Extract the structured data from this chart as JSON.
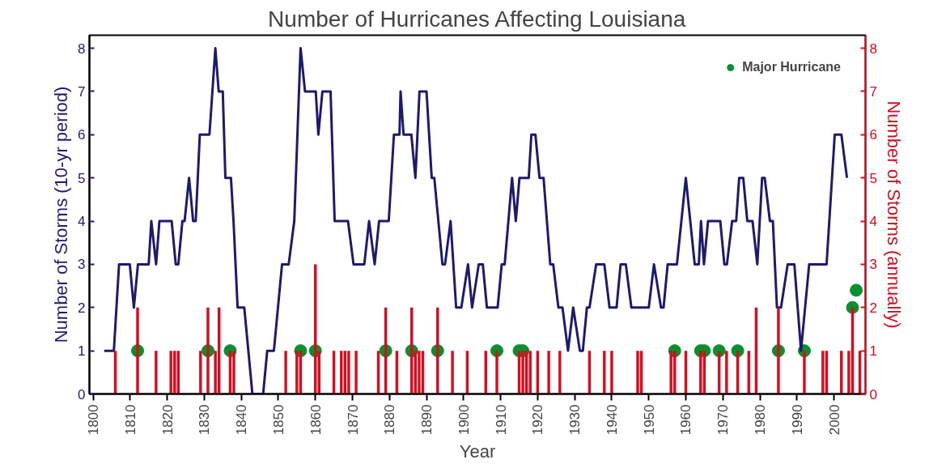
{
  "chart_data": {
    "type": "line",
    "title": "Number of Hurricanes Affecting Louisiana",
    "xlabel": "Year",
    "ylabel": "Number of Storms (10-yr period)",
    "y2label": "Number of Storms (annually)",
    "xlim": [
      1799,
      2008.5
    ],
    "xticks": [
      1800,
      1810,
      1820,
      1830,
      1840,
      1850,
      1860,
      1870,
      1880,
      1890,
      1900,
      1910,
      1920,
      1930,
      1940,
      1950,
      1960,
      1970,
      1980,
      1990,
      2000
    ],
    "ylim": [
      0,
      8.3
    ],
    "yticks": [
      0,
      1,
      2,
      3,
      4,
      5,
      6,
      7,
      8
    ],
    "y2lim": [
      0,
      8.3
    ],
    "y2ticks": [
      0,
      1,
      2,
      3,
      4,
      5,
      6,
      7,
      8
    ],
    "legend": "top right",
    "series": [
      {
        "axis": "y",
        "color": "#1f1a6e",
        "marker": "none",
        "line_style": "solid",
        "x": [
          1803,
          1805.6,
          1807,
          1809.9,
          1811,
          1812.1,
          1815,
          1815.7,
          1817,
          1817.9,
          1821.2,
          1822.3,
          1823,
          1824.1,
          1824.7,
          1825.9,
          1827,
          1827.7,
          1828.8,
          1831.4,
          1833,
          1833.9,
          1835,
          1835.7,
          1837.2,
          1837.9,
          1839,
          1840.8,
          1843,
          1845.9,
          1847,
          1848.8,
          1851,
          1852.8,
          1854.3,
          1856,
          1857.2,
          1860.1,
          1860.8,
          1861.9,
          1864.1,
          1865.2,
          1868.8,
          1870.3,
          1873.2,
          1874.5,
          1876,
          1877.2,
          1879.8,
          1881.2,
          1882.7,
          1883,
          1883.8,
          1885.9,
          1887,
          1888.1,
          1890,
          1891.4,
          1892.1,
          1894.3,
          1895,
          1896.5,
          1898,
          1899.4,
          1901.2,
          1902.3,
          1904.1,
          1905.2,
          1906.3,
          1909.2,
          1910.3,
          1911.1,
          1913.1,
          1914.1,
          1915.1,
          1917.6,
          1918.3,
          1919.4,
          1920.5,
          1921.6,
          1923.4,
          1924.2,
          1925.6,
          1926.7,
          1928.2,
          1929.6,
          1931.4,
          1932.2,
          1933.3,
          1934,
          1935.8,
          1938,
          1939.4,
          1941.3,
          1942.4,
          1943.8,
          1945.3,
          1950,
          1951.4,
          1953.3,
          1954,
          1955.1,
          1957.6,
          1960,
          1962.4,
          1963.5,
          1964.1,
          1964.9,
          1966,
          1969.3,
          1970.4,
          1971.1,
          1972.5,
          1973.6,
          1974.4,
          1975.5,
          1976.6,
          1978,
          1979.3,
          1980.6,
          1981.3,
          1982.7,
          1983.5,
          1984.6,
          1985.7,
          1987.5,
          1989.3,
          1991.1,
          1993.3,
          1998,
          2000.2,
          2002,
          2003.5
        ],
        "values": [
          1,
          1,
          3,
          3,
          2,
          3,
          3,
          4,
          3,
          4,
          4,
          3,
          3,
          4,
          4,
          5,
          4,
          4,
          6,
          6,
          8,
          7,
          7,
          5,
          5,
          4,
          2,
          2,
          0,
          0,
          1,
          1,
          3,
          3,
          4,
          8,
          7,
          7,
          6,
          7,
          7,
          4,
          4,
          3,
          3,
          4,
          3,
          4,
          4,
          6,
          6,
          7,
          6,
          6,
          5,
          7,
          7,
          5,
          5,
          3,
          3,
          4,
          2,
          2,
          3,
          2,
          3,
          3,
          2,
          2,
          3,
          3,
          5,
          4,
          5,
          5,
          6,
          6,
          5,
          5,
          3,
          3,
          2,
          2,
          1,
          2,
          1,
          1,
          2,
          2,
          3,
          3,
          2,
          2,
          3,
          3,
          2,
          2,
          3,
          2,
          2,
          3,
          3,
          5,
          3,
          3,
          4,
          3,
          4,
          4,
          3,
          3,
          4,
          4,
          5,
          5,
          4,
          4,
          3,
          5,
          5,
          4,
          4,
          2,
          2,
          3,
          3,
          1,
          3,
          3,
          6,
          6,
          5
        ]
      },
      {
        "type": "bar",
        "axis": "y2",
        "color": "#dc0a1e",
        "x": [
          1806,
          1812,
          1817,
          1821,
          1822,
          1823,
          1829,
          1831,
          1833,
          1834,
          1837,
          1838,
          1852,
          1855,
          1856,
          1860,
          1861,
          1865,
          1867,
          1868,
          1869,
          1871,
          1877,
          1879,
          1882,
          1886,
          1887,
          1888,
          1889,
          1893,
          1897,
          1901,
          1906,
          1909,
          1915,
          1916,
          1917,
          1918,
          1920,
          1923,
          1926,
          1934,
          1938,
          1940,
          1947,
          1948,
          1956,
          1957,
          1960,
          1964,
          1965,
          1969,
          1971,
          1974,
          1977,
          1979,
          1985,
          1992,
          1997,
          1998,
          2002,
          2004,
          2005,
          2007
        ],
        "values": [
          1,
          2,
          1,
          1,
          1,
          1,
          1,
          2,
          1,
          2,
          1,
          1,
          1,
          1,
          1,
          3,
          1,
          1,
          1,
          1,
          1,
          1,
          1,
          2,
          1,
          2,
          1,
          1,
          1,
          2,
          1,
          1,
          1,
          1,
          1,
          1,
          1,
          1,
          1,
          1,
          1,
          1,
          1,
          1,
          1,
          1,
          1,
          1,
          1,
          1,
          1,
          1,
          1,
          1,
          1,
          2,
          2,
          1,
          1,
          1,
          1,
          1,
          2,
          1
        ]
      },
      {
        "type": "scatter",
        "axis": "y2",
        "name": "Major Hurricane",
        "color": "#0a8f2e",
        "marker": "circle",
        "x": [
          1812,
          1831,
          1837,
          1856,
          1860,
          1879,
          1886,
          1893,
          1909,
          1915,
          1916,
          1957,
          1964,
          1965,
          1969,
          1974,
          1985,
          1992,
          2005,
          2006
        ],
        "values": [
          1,
          1,
          1,
          1,
          1,
          1,
          1,
          1,
          1,
          1,
          1,
          1,
          1,
          1,
          1,
          1,
          1,
          1,
          2,
          2.4
        ]
      }
    ]
  }
}
